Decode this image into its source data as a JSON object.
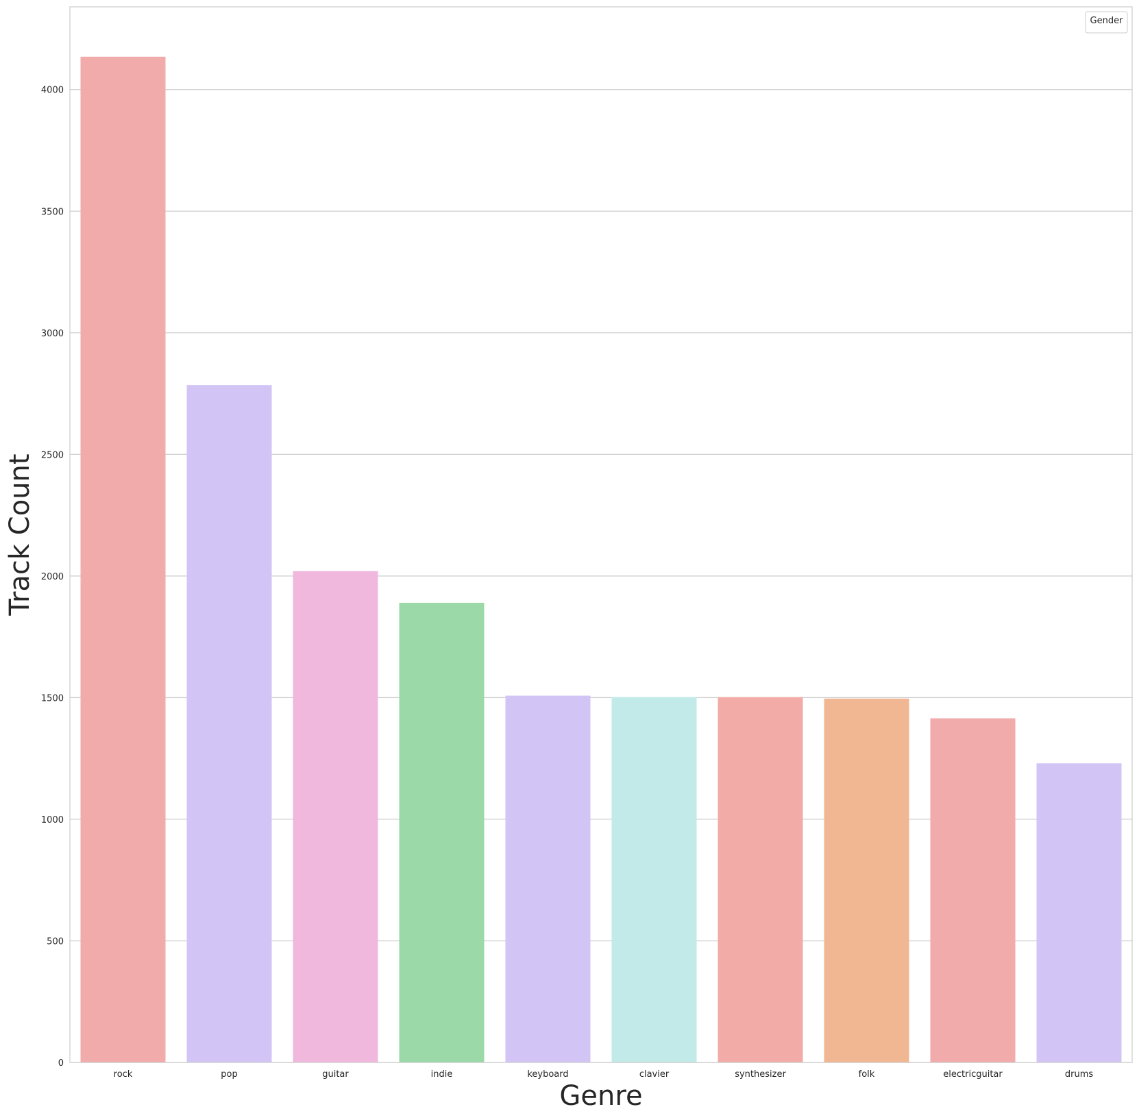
{
  "chart_data": {
    "type": "bar",
    "title": "",
    "xlabel": "Genre",
    "ylabel": "Track Count",
    "categories": [
      "rock",
      "pop",
      "guitar",
      "indie",
      "keyboard",
      "clavier",
      "synthesizer",
      "folk",
      "electricguitar",
      "drums"
    ],
    "values": [
      4135,
      2785,
      2020,
      1890,
      1508,
      1502,
      1502,
      1496,
      1415,
      1230
    ],
    "colors": [
      "#f1abab",
      "#d3c4f6",
      "#f1b8de",
      "#9bd9a9",
      "#d3c4f6",
      "#c1eae8",
      "#f2aba6",
      "#f0b792",
      "#f1abab",
      "#d3c4f6"
    ],
    "ylim": [
      0,
      4340
    ],
    "yticks": [
      0,
      500,
      1000,
      1500,
      2000,
      2500,
      3000,
      3500,
      4000
    ],
    "grid": true,
    "legend": {
      "title": "Gender",
      "placement": "top-right",
      "entries": []
    }
  }
}
